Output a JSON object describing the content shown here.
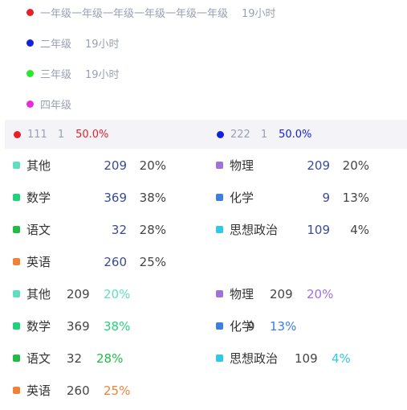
{
  "grades": [
    {
      "name": "一年级一年级一年级一年级一年级一年级",
      "hours": "19小时",
      "color": "#e8202a"
    },
    {
      "name": "二年级",
      "hours": "19小时",
      "color": "#1220e0"
    },
    {
      "name": "三年级",
      "hours": "19小时",
      "color": "#28e828"
    },
    {
      "name": "四年级",
      "hours": "",
      "color": "#e82ae0"
    }
  ],
  "comparison": [
    {
      "name": "111",
      "count": "1",
      "percent": "50.0%",
      "color": "#e8202a"
    },
    {
      "name": "222",
      "count": "1",
      "percent": "50.0%",
      "color": "#1220e0"
    }
  ],
  "subjects_table_1": [
    {
      "name": "其他",
      "value": "209",
      "percent": "20%",
      "color": "#5ee0c0"
    },
    {
      "name": "物理",
      "value": "209",
      "percent": "20%",
      "color": "#a070e0"
    },
    {
      "name": "数学",
      "value": "369",
      "percent": "38%",
      "color": "#22d27a"
    },
    {
      "name": "化学",
      "value": "9",
      "percent": "13%",
      "color": "#3a7ee6"
    },
    {
      "name": "语文",
      "value": "32",
      "percent": "28%",
      "color": "#22bb44"
    },
    {
      "name": "思想政治",
      "value": "109",
      "percent": "4%",
      "color": "#2ec8e8"
    },
    {
      "name": "英语",
      "value": "260",
      "percent": "25%",
      "color": "#f28234"
    }
  ],
  "subjects_table_2": [
    {
      "name": "其他",
      "value": "209",
      "percent": "20%",
      "color": "#5ee0c0"
    },
    {
      "name": "物理",
      "value": "209",
      "percent": "20%",
      "color": "#a070e0"
    },
    {
      "name": "数学",
      "value": "369",
      "percent": "38%",
      "color": "#22d27a"
    },
    {
      "name": "化学",
      "value": "9",
      "percent": "13%",
      "color": "#3a7ee6"
    },
    {
      "name": "语文",
      "value": "32",
      "percent": "28%",
      "color": "#22bb44"
    },
    {
      "name": "思想政治",
      "value": "109",
      "percent": "4%",
      "color": "#2ec8e8"
    },
    {
      "name": "英语",
      "value": "260",
      "percent": "25%",
      "color": "#f28234"
    }
  ]
}
